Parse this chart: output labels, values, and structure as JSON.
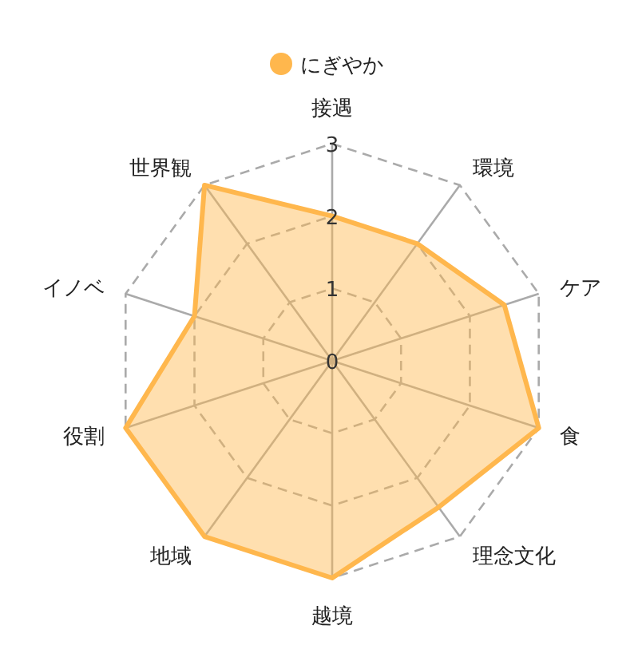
{
  "chart_data": {
    "type": "radar",
    "categories": [
      "接遇",
      "環境",
      "ケア",
      "食",
      "理念文化",
      "越境",
      "地域",
      "役割",
      "イノベ",
      "世界観"
    ],
    "series": [
      {
        "name": "にぎやか",
        "color": "#ffb74d",
        "values": [
          2,
          2,
          2.5,
          3,
          2.5,
          3,
          3,
          3,
          2,
          3
        ]
      }
    ],
    "ylim": [
      0,
      3
    ],
    "yticks": [
      0,
      1,
      2,
      3
    ],
    "grid": true,
    "legend": "top"
  }
}
